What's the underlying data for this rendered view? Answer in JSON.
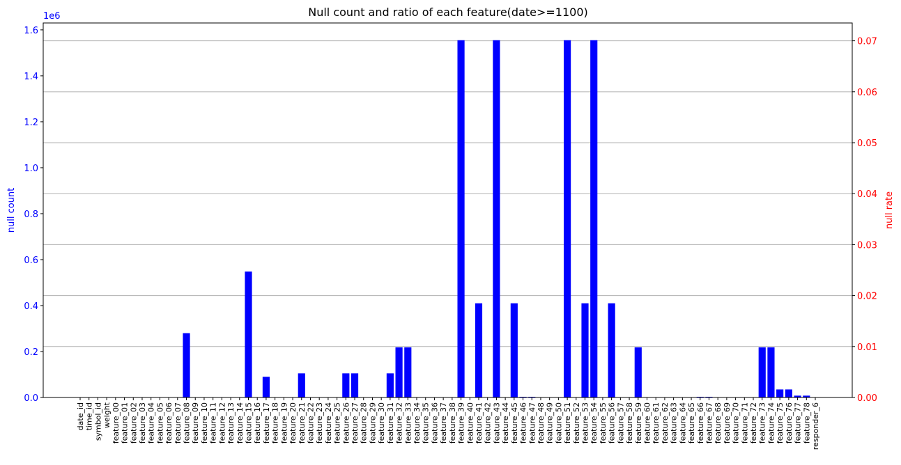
{
  "chart_data": {
    "type": "bar",
    "title": "Null count and ratio of each feature(date>=1100)",
    "ylabel": "null count",
    "y2label": "null rate",
    "offset_text": "1e6",
    "ylim": [
      0,
      1.63
    ],
    "y2lim": [
      0,
      0.0735
    ],
    "yticks": [
      "0.0",
      "0.2",
      "0.4",
      "0.6",
      "0.8",
      "1.0",
      "1.2",
      "1.4",
      "1.6"
    ],
    "y2ticks": [
      "0.00",
      "0.01",
      "0.02",
      "0.03",
      "0.04",
      "0.05",
      "0.06",
      "0.07"
    ],
    "grid": "horizontal lines at right-axis ticks",
    "colors": {
      "bars": "#0000ff",
      "left_axis": "#0000ff",
      "right_axis": "#ff0000"
    },
    "categories": [
      "date_id",
      "time_id",
      "symbol_id",
      "weight",
      "feature_00",
      "feature_01",
      "feature_02",
      "feature_03",
      "feature_04",
      "feature_05",
      "feature_06",
      "feature_07",
      "feature_08",
      "feature_09",
      "feature_10",
      "feature_11",
      "feature_12",
      "feature_13",
      "feature_14",
      "feature_15",
      "feature_16",
      "feature_17",
      "feature_18",
      "feature_19",
      "feature_20",
      "feature_21",
      "feature_22",
      "feature_23",
      "feature_24",
      "feature_25",
      "feature_26",
      "feature_27",
      "feature_28",
      "feature_29",
      "feature_30",
      "feature_31",
      "feature_32",
      "feature_33",
      "feature_34",
      "feature_35",
      "feature_36",
      "feature_37",
      "feature_38",
      "feature_39",
      "feature_40",
      "feature_41",
      "feature_42",
      "feature_43",
      "feature_44",
      "feature_45",
      "feature_46",
      "feature_47",
      "feature_48",
      "feature_49",
      "feature_50",
      "feature_51",
      "feature_52",
      "feature_53",
      "feature_54",
      "feature_55",
      "feature_56",
      "feature_57",
      "feature_58",
      "feature_59",
      "feature_60",
      "feature_61",
      "feature_62",
      "feature_63",
      "feature_64",
      "feature_65",
      "feature_66",
      "feature_67",
      "feature_68",
      "feature_69",
      "feature_70",
      "feature_71",
      "feature_72",
      "feature_73",
      "feature_74",
      "feature_75",
      "feature_76",
      "feature_77",
      "feature_78",
      "responder_6"
    ],
    "values": [
      0,
      0,
      0,
      0,
      0,
      0,
      0,
      0,
      0,
      0,
      0,
      0,
      0.28,
      0,
      0,
      0,
      0,
      0,
      0,
      0.548,
      0,
      0.09,
      0,
      0,
      0,
      0.105,
      0,
      0,
      0,
      0,
      0.105,
      0.105,
      0,
      0,
      0,
      0.105,
      0.218,
      0.218,
      0,
      0,
      0,
      0,
      0,
      1.555,
      0,
      0.41,
      0,
      1.555,
      0,
      0.41,
      0.003,
      0.003,
      0,
      0,
      0,
      1.555,
      0,
      0.41,
      1.555,
      0,
      0.41,
      0,
      0,
      0.218,
      0,
      0,
      0,
      0,
      0,
      0,
      0.003,
      0.003,
      0,
      0,
      0,
      0,
      0,
      0.218,
      0.218,
      0.035,
      0.035,
      0.008,
      0.008,
      0
    ],
    "value_unit_multiplier": 1000000
  }
}
